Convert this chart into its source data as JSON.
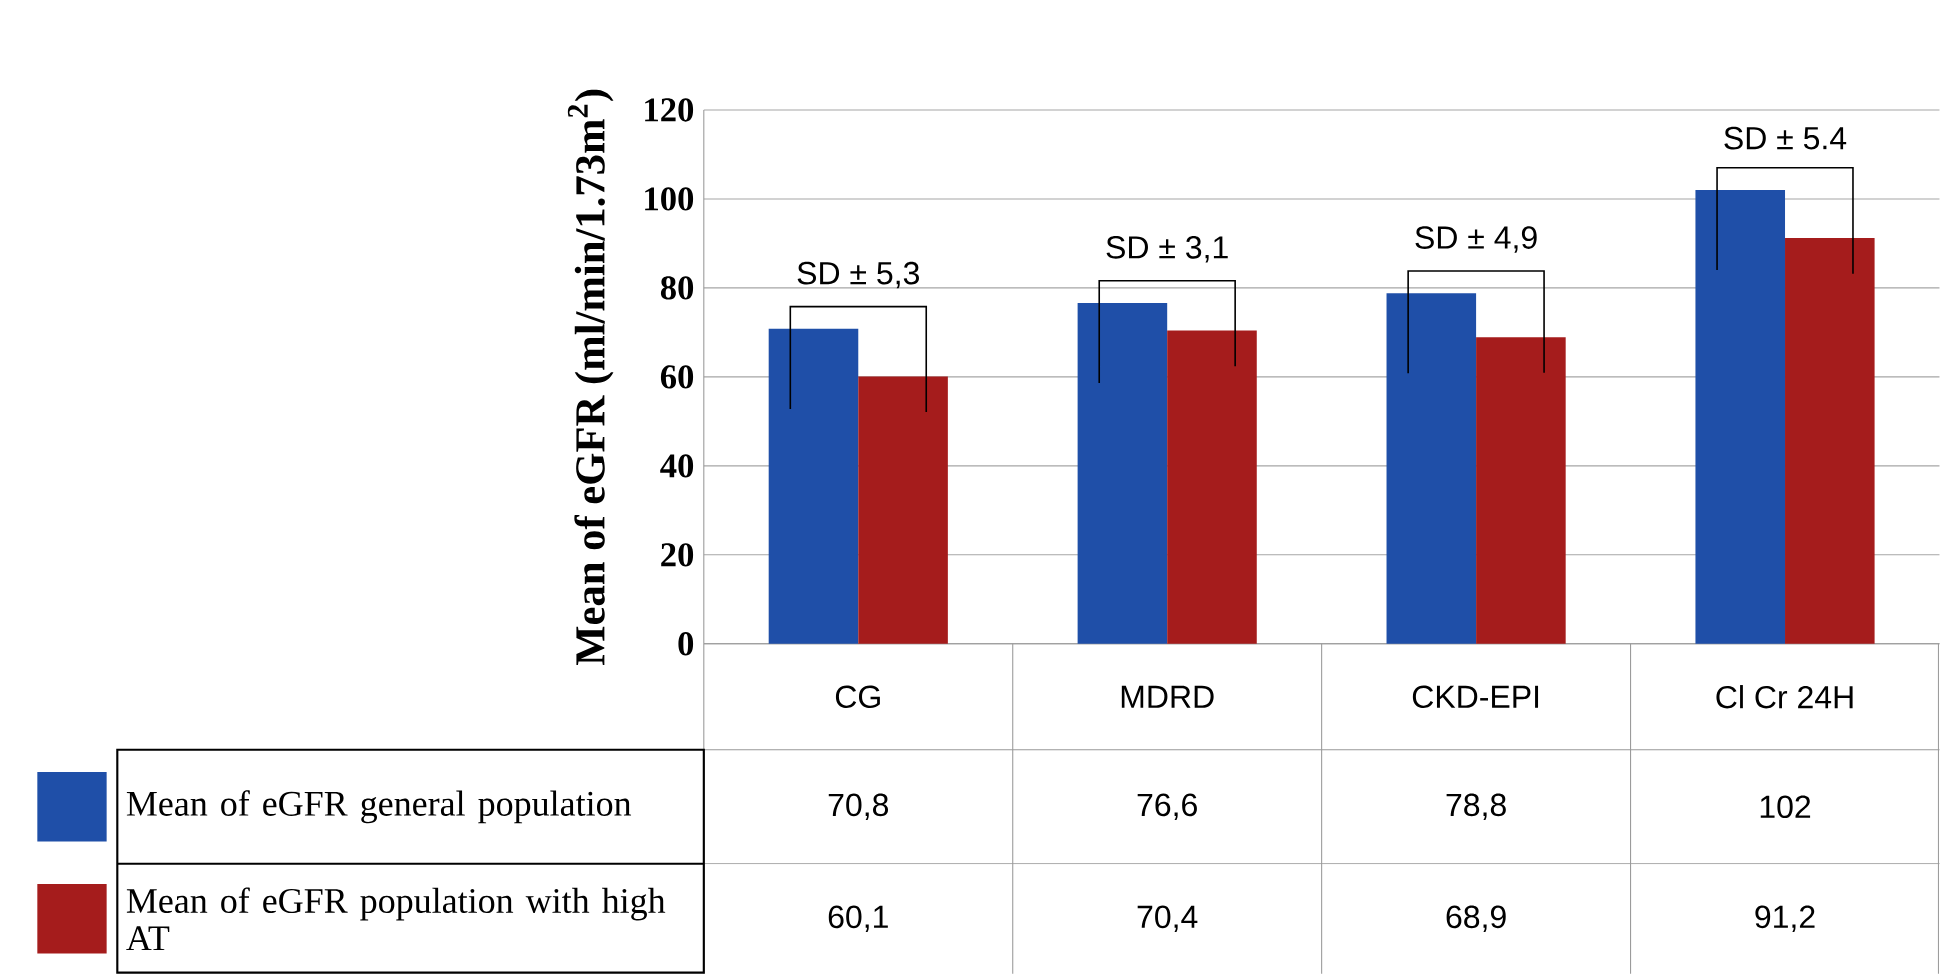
{
  "chart_data": {
    "type": "bar",
    "ylabel": "Mean of eGFR (ml/min/1.73m$^{2}$)",
    "categories": [
      "CG",
      "MDRD",
      "CKD-EPI",
      "Cl Cr 24H"
    ],
    "series": [
      {
        "name": "Mean of eGFR general population",
        "color": "#1f4fa8",
        "values": [
          70.8,
          76.6,
          78.8,
          102
        ],
        "value_labels": [
          "70,8",
          "76,6",
          "78,8",
          "102"
        ]
      },
      {
        "name": "Mean of eGFR population with high AT",
        "color": "#a51c1c",
        "values": [
          60.1,
          70.4,
          68.9,
          91.2
        ],
        "value_labels": [
          "60,1",
          "70,4",
          "68,9",
          "91,2"
        ]
      }
    ],
    "ylim": [
      0,
      120
    ],
    "yticks": [
      0,
      20,
      40,
      60,
      80,
      100,
      120
    ],
    "grid": "y",
    "legend": "bottom",
    "annotations": [
      "SD ±  5,3",
      "SD ±  3,1",
      "SD ±  4,9",
      "SD ±  5.4"
    ]
  }
}
